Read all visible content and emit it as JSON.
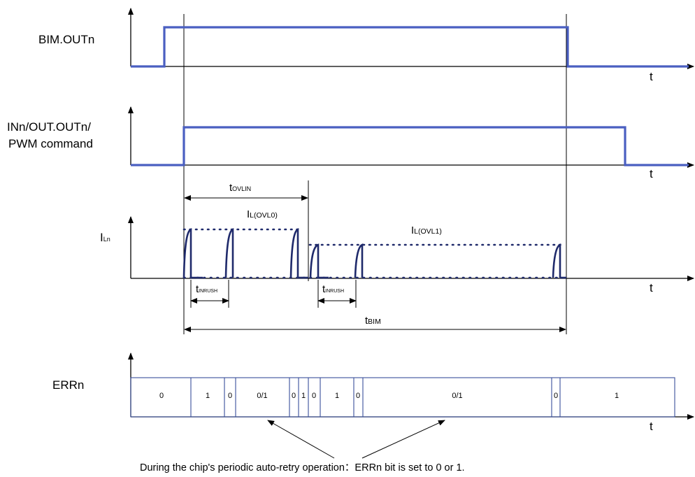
{
  "signals": {
    "bim_out": "BIM.OUTn",
    "in_out_line1": "INn/OUT.OUTn/",
    "in_out_line2": "PWM command",
    "iln_main": "I",
    "iln_sub": "Ln",
    "errn": "ERRn"
  },
  "axis_label": "t",
  "annotations": {
    "t_ovlin_main": "t",
    "t_ovlin_sub": "OVLIN",
    "il_ovl0_main": "I",
    "il_ovl0_sub": "L(OVL0)",
    "il_ovl1_main": "I",
    "il_ovl1_sub": "L(OVL1)",
    "t_inrush_main": "t",
    "t_inrush_sub": "INRUSH",
    "t_bim_main": "t",
    "t_bim_sub": "BIM"
  },
  "err_cells": [
    "0",
    "1",
    "0",
    "0/1",
    "0",
    "1",
    "0",
    "1",
    "0",
    "0/1",
    "0",
    "1"
  ],
  "note": "During the chip's periodic auto-retry operation：ERRn bit is set to 0 or 1.",
  "colors": {
    "signal": "#4a5fc1",
    "current": "#1f2a6b",
    "axis": "#000000",
    "err_border": "#3a4f9a"
  }
}
